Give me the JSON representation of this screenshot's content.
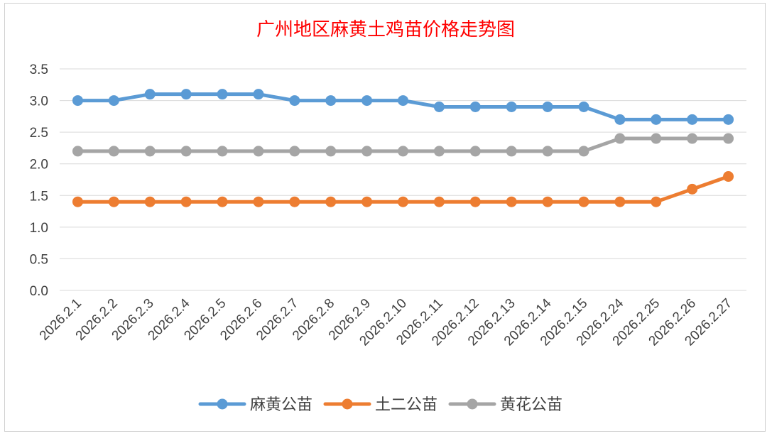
{
  "chart_data": {
    "type": "line",
    "title": "广州地区麻黄土鸡苗价格走势图",
    "categories": [
      "2026.2.1",
      "2026.2.2",
      "2026.2.3",
      "2026.2.4",
      "2026.2.5",
      "2026.2.6",
      "2026.2.7",
      "2026.2.8",
      "2026.2.9",
      "2026.2.10",
      "2026.2.11",
      "2026.2.12",
      "2026.2.13",
      "2026.2.14",
      "2026.2.15",
      "2026.2.24",
      "2026.2.25",
      "2026.2.26",
      "2026.2.27"
    ],
    "series": [
      {
        "name": "麻黄公苗",
        "color": "#5b9bd5",
        "values": [
          3.0,
          3.0,
          3.1,
          3.1,
          3.1,
          3.1,
          3.0,
          3.0,
          3.0,
          3.0,
          2.9,
          2.9,
          2.9,
          2.9,
          2.9,
          2.7,
          2.7,
          2.7,
          2.7
        ]
      },
      {
        "name": "土二公苗",
        "color": "#ed7d31",
        "values": [
          1.4,
          1.4,
          1.4,
          1.4,
          1.4,
          1.4,
          1.4,
          1.4,
          1.4,
          1.4,
          1.4,
          1.4,
          1.4,
          1.4,
          1.4,
          1.4,
          1.4,
          1.6,
          1.8
        ]
      },
      {
        "name": "黄花公苗",
        "color": "#a5a5a5",
        "values": [
          2.2,
          2.2,
          2.2,
          2.2,
          2.2,
          2.2,
          2.2,
          2.2,
          2.2,
          2.2,
          2.2,
          2.2,
          2.2,
          2.2,
          2.2,
          2.4,
          2.4,
          2.4,
          2.4
        ]
      }
    ],
    "ylim": [
      0,
      3.5
    ],
    "yticks": [
      "0.0",
      "0.5",
      "1.0",
      "1.5",
      "2.0",
      "2.5",
      "3.0",
      "3.5"
    ],
    "grid": true,
    "legend_position": "bottom"
  }
}
